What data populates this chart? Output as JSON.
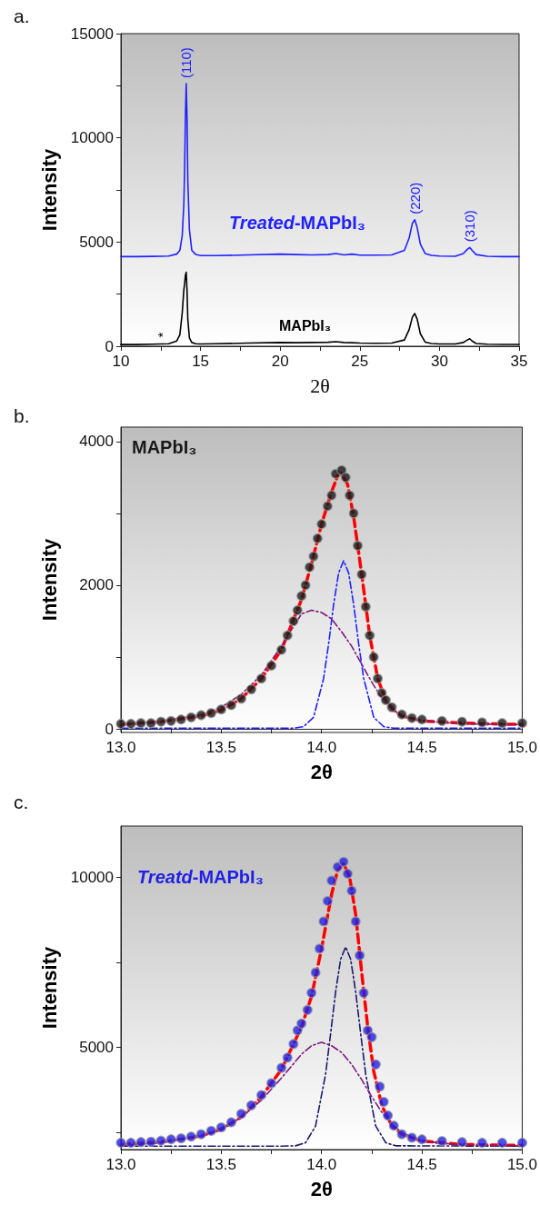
{
  "chart_data": [
    {
      "type": "line",
      "title": "a.",
      "xlabel": "2θ",
      "ylabel": "Intensity",
      "xlim": [
        10,
        35
      ],
      "ylim": [
        0,
        15000
      ],
      "xticks": [
        10,
        {
          "value": 12.5,
          "label": null
        },
        15,
        {
          "value": 17.5,
          "label": null
        },
        20,
        {
          "value": 22.5,
          "label": null
        },
        25,
        {
          "value": 27.5,
          "label": null
        },
        30,
        {
          "value": 32.5,
          "label": null
        },
        35
      ],
      "yticks": [
        0,
        {
          "value": 2500,
          "label": null
        },
        5000,
        {
          "value": 7500,
          "label": null
        },
        10000,
        {
          "value": 12500,
          "label": null
        },
        15000
      ],
      "x": [
        10,
        11,
        12,
        13,
        13.5,
        13.7,
        13.85,
        13.95,
        14.0,
        14.05,
        14.1,
        14.15,
        14.2,
        14.3,
        14.45,
        14.7,
        15,
        16,
        18,
        20,
        21,
        22,
        23,
        23.5,
        24,
        24.5,
        25,
        26,
        27,
        27.8,
        28.1,
        28.3,
        28.45,
        28.6,
        28.8,
        29.1,
        29.5,
        30,
        31,
        31.5,
        31.75,
        31.9,
        32.05,
        32.3,
        33,
        34,
        35
      ],
      "series": [
        {
          "name": "Treated-MAPbI₃",
          "color": "#2121ff",
          "values": [
            4300,
            4300,
            4310,
            4330,
            4420,
            4600,
            5300,
            6800,
            8500,
            11000,
            12600,
            11000,
            8000,
            5600,
            4600,
            4400,
            4350,
            4350,
            4380,
            4420,
            4400,
            4380,
            4400,
            4450,
            4380,
            4420,
            4370,
            4370,
            4380,
            4600,
            5200,
            5900,
            6070,
            5700,
            4900,
            4450,
            4360,
            4330,
            4320,
            4450,
            4650,
            4740,
            4600,
            4400,
            4320,
            4300,
            4300
          ]
        },
        {
          "name": "MAPbI₃",
          "color": "#000000",
          "values": [
            80,
            80,
            100,
            120,
            250,
            550,
            1600,
            2700,
            3000,
            3400,
            3550,
            2700,
            1300,
            400,
            180,
            120,
            110,
            120,
            150,
            180,
            170,
            180,
            190,
            220,
            180,
            170,
            150,
            140,
            150,
            300,
            800,
            1400,
            1570,
            1300,
            600,
            200,
            130,
            110,
            110,
            180,
            300,
            360,
            250,
            130,
            100,
            90,
            90
          ]
        }
      ],
      "annotations": [
        {
          "text": "(110)",
          "x": 14.1,
          "y": 12600
        },
        {
          "text": "(220)",
          "x": 28.45,
          "y": 6070
        },
        {
          "text": "(310)",
          "x": 31.9,
          "y": 4740
        },
        {
          "text": "*",
          "x": 12.6,
          "y": 150
        }
      ]
    },
    {
      "type": "scatter",
      "title": "b.",
      "xlabel": "2θ",
      "ylabel": "Intensity",
      "xlim": [
        13,
        15
      ],
      "ylim": [
        -50,
        4200
      ],
      "xticks": [
        {
          "value": 13,
          "label": "13.0"
        },
        {
          "value": 13.25,
          "label": null
        },
        {
          "value": 13.5,
          "label": "13.5"
        },
        {
          "value": 13.75,
          "label": null
        },
        {
          "value": 14,
          "label": "14.0"
        },
        {
          "value": 14.25,
          "label": null
        },
        {
          "value": 14.5,
          "label": "14.5"
        },
        {
          "value": 14.75,
          "label": null
        },
        {
          "value": 15,
          "label": "15.0"
        }
      ],
      "yticks": [
        0,
        {
          "value": 1000,
          "label": null
        },
        2000,
        {
          "value": 3000,
          "label": null
        },
        4000
      ],
      "series": [
        {
          "name": "MAPbI₃",
          "color": "#1a1a1a",
          "marker": "circle",
          "x": [
            13.0,
            13.05,
            13.1,
            13.15,
            13.2,
            13.25,
            13.3,
            13.35,
            13.4,
            13.45,
            13.5,
            13.55,
            13.6,
            13.65,
            13.7,
            13.75,
            13.8,
            13.83,
            13.86,
            13.88,
            13.9,
            13.92,
            13.94,
            13.96,
            13.98,
            14.0,
            14.03,
            14.05,
            14.07,
            14.1,
            14.12,
            14.14,
            14.16,
            14.18,
            14.2,
            14.22,
            14.24,
            14.26,
            14.28,
            14.3,
            14.32,
            14.35,
            14.4,
            14.45,
            14.5,
            14.6,
            14.7,
            14.8,
            14.9,
            15.0
          ],
          "values": [
            70,
            70,
            80,
            80,
            100,
            110,
            130,
            160,
            190,
            220,
            270,
            330,
            420,
            550,
            700,
            880,
            1100,
            1300,
            1500,
            1650,
            1850,
            2000,
            2250,
            2400,
            2650,
            2850,
            3100,
            3250,
            3550,
            3600,
            3500,
            3250,
            3000,
            2550,
            2150,
            1700,
            1300,
            1000,
            700,
            500,
            400,
            300,
            200,
            150,
            130,
            110,
            100,
            90,
            80,
            80
          ]
        },
        {
          "type": "line",
          "line_style": "dashed",
          "color": "#ff0000",
          "x": [
            13.0,
            13.2,
            13.4,
            13.5,
            13.6,
            13.7,
            13.8,
            13.9,
            13.95,
            14.0,
            14.05,
            14.08,
            14.1,
            14.13,
            14.16,
            14.2,
            14.24,
            14.28,
            14.32,
            14.36,
            14.4,
            14.5,
            14.7,
            15.0
          ],
          "values": [
            60,
            100,
            180,
            260,
            420,
            700,
            1100,
            1800,
            2300,
            2850,
            3300,
            3520,
            3560,
            3400,
            2950,
            2150,
            1300,
            700,
            400,
            260,
            180,
            110,
            80,
            60
          ]
        },
        {
          "type": "line",
          "line_style": "dashdot",
          "color": "#2020ff",
          "x": [
            13.0,
            13.5,
            13.8,
            13.86,
            13.91,
            13.96,
            14.01,
            14.035,
            14.06,
            14.085,
            14.11,
            14.135,
            14.16,
            14.185,
            14.21,
            14.26,
            14.31,
            14.36,
            15.0
          ],
          "values": [
            10,
            10,
            10,
            10,
            30,
            160,
            700,
            1180,
            1730,
            2170,
            2340,
            2170,
            1730,
            1180,
            700,
            160,
            30,
            10,
            10
          ]
        },
        {
          "type": "line",
          "line_style": "dashdot",
          "color": "#7b1a7b",
          "x": [
            13.0,
            13.2,
            13.4,
            13.5,
            13.6,
            13.7,
            13.8,
            13.85,
            13.9,
            13.95,
            14.0,
            14.05,
            14.1,
            14.15,
            14.2,
            14.25,
            14.3,
            14.35,
            14.4,
            14.5,
            14.7,
            15.0
          ],
          "values": [
            60,
            100,
            200,
            300,
            480,
            750,
            1150,
            1380,
            1600,
            1650,
            1620,
            1530,
            1350,
            1150,
            900,
            650,
            430,
            280,
            180,
            110,
            70,
            60
          ]
        }
      ]
    },
    {
      "type": "scatter",
      "title": "c.",
      "xlabel": "2θ",
      "ylabel": "Intensity",
      "xlim": [
        13,
        15
      ],
      "ylim": [
        2000,
        11500
      ],
      "xticks": [
        {
          "value": 13,
          "label": "13.0"
        },
        {
          "value": 13.25,
          "label": null
        },
        {
          "value": 13.5,
          "label": "13.5"
        },
        {
          "value": 13.75,
          "label": null
        },
        {
          "value": 14,
          "label": "14.0"
        },
        {
          "value": 14.25,
          "label": null
        },
        {
          "value": 14.5,
          "label": "14.5"
        },
        {
          "value": 14.75,
          "label": null
        },
        {
          "value": 15,
          "label": "15.0"
        }
      ],
      "yticks": [
        {
          "value": 2500,
          "label": null
        },
        5000,
        {
          "value": 7500,
          "label": null
        },
        10000
      ],
      "series": [
        {
          "name": "Treatd-MAPbI₃",
          "color": "#1f1fe6",
          "marker": "circle",
          "x": [
            13.0,
            13.05,
            13.1,
            13.15,
            13.2,
            13.25,
            13.3,
            13.35,
            13.4,
            13.45,
            13.5,
            13.55,
            13.6,
            13.65,
            13.7,
            13.75,
            13.8,
            13.83,
            13.86,
            13.88,
            13.9,
            13.93,
            13.95,
            13.97,
            13.99,
            14.01,
            14.03,
            14.05,
            14.08,
            14.11,
            14.13,
            14.15,
            14.17,
            14.19,
            14.21,
            14.23,
            14.25,
            14.27,
            14.29,
            14.31,
            14.33,
            14.36,
            14.4,
            14.45,
            14.5,
            14.6,
            14.7,
            14.8,
            14.9,
            15.0
          ],
          "values": [
            2200,
            2200,
            2220,
            2230,
            2260,
            2300,
            2330,
            2380,
            2450,
            2550,
            2650,
            2800,
            3050,
            3300,
            3600,
            3950,
            4400,
            4700,
            5100,
            5500,
            5700,
            6100,
            6600,
            7200,
            7900,
            8700,
            9300,
            9900,
            10300,
            10450,
            10100,
            9600,
            8700,
            7700,
            6600,
            5500,
            5300,
            4500,
            3850,
            3400,
            3000,
            2700,
            2450,
            2350,
            2300,
            2250,
            2220,
            2200,
            2200,
            2200
          ]
        },
        {
          "type": "line",
          "line_style": "dashed",
          "color": "#ff0000",
          "x": [
            13.0,
            13.2,
            13.4,
            13.5,
            13.6,
            13.7,
            13.8,
            13.9,
            13.95,
            14.0,
            14.05,
            14.08,
            14.11,
            14.14,
            14.17,
            14.2,
            14.23,
            14.26,
            14.3,
            14.35,
            14.4,
            14.5,
            14.7,
            15.0
          ],
          "values": [
            2150,
            2220,
            2400,
            2600,
            2950,
            3550,
            4350,
            5600,
            6500,
            7900,
            9500,
            10200,
            10400,
            10000,
            8900,
            7200,
            5600,
            4300,
            3300,
            2700,
            2450,
            2250,
            2150,
            2120
          ]
        },
        {
          "type": "line",
          "line_style": "dashdot",
          "color": "#1a1a6e",
          "x": [
            13.0,
            13.8,
            13.87,
            13.92,
            13.97,
            14.02,
            14.045,
            14.07,
            14.095,
            14.12,
            14.145,
            14.17,
            14.195,
            14.22,
            14.27,
            14.32,
            14.37,
            15.0
          ],
          "values": [
            2100,
            2100,
            2110,
            2200,
            2690,
            4210,
            5400,
            6630,
            7590,
            7950,
            7590,
            6630,
            5400,
            4210,
            2690,
            2200,
            2110,
            2100
          ]
        },
        {
          "type": "line",
          "line_style": "dashdot",
          "color": "#7b1a7b",
          "x": [
            13.0,
            13.2,
            13.4,
            13.5,
            13.6,
            13.7,
            13.8,
            13.9,
            13.95,
            14.0,
            14.05,
            14.1,
            14.15,
            14.2,
            14.25,
            14.3,
            14.35,
            14.4,
            14.5,
            14.7,
            15.0
          ],
          "values": [
            2120,
            2200,
            2400,
            2600,
            2950,
            3450,
            4100,
            4800,
            5050,
            5150,
            5050,
            4850,
            4500,
            4050,
            3550,
            3100,
            2750,
            2500,
            2250,
            2130,
            2100
          ]
        }
      ]
    }
  ]
}
